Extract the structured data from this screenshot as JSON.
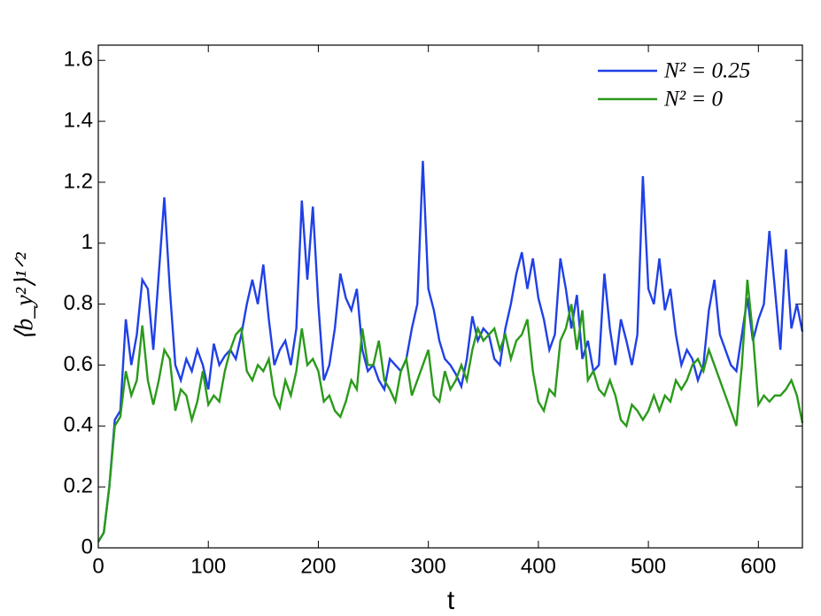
{
  "chart_data": {
    "type": "line",
    "xlabel": "t",
    "ylabel": "⟨b_y²⟩¹ᐟ²",
    "xlim": [
      0,
      640
    ],
    "ylim": [
      0,
      1.65
    ],
    "xticks": [
      0,
      100,
      200,
      300,
      400,
      500,
      600
    ],
    "yticks": [
      0,
      0.2,
      0.4,
      0.6,
      0.8,
      1,
      1.2,
      1.4,
      1.6
    ],
    "legend": "upper right",
    "x": [
      0,
      5,
      10,
      15,
      20,
      25,
      30,
      35,
      40,
      45,
      50,
      55,
      60,
      65,
      70,
      75,
      80,
      85,
      90,
      95,
      100,
      105,
      110,
      115,
      120,
      125,
      130,
      135,
      140,
      145,
      150,
      155,
      160,
      165,
      170,
      175,
      180,
      185,
      190,
      195,
      200,
      205,
      210,
      215,
      220,
      225,
      230,
      235,
      240,
      245,
      250,
      255,
      260,
      265,
      270,
      275,
      280,
      285,
      290,
      295,
      300,
      305,
      310,
      315,
      320,
      325,
      330,
      335,
      340,
      345,
      350,
      355,
      360,
      365,
      370,
      375,
      380,
      385,
      390,
      395,
      400,
      405,
      410,
      415,
      420,
      425,
      430,
      435,
      440,
      445,
      450,
      455,
      460,
      465,
      470,
      475,
      480,
      485,
      490,
      495,
      500,
      505,
      510,
      515,
      520,
      525,
      530,
      535,
      540,
      545,
      550,
      555,
      560,
      565,
      570,
      575,
      580,
      585,
      590,
      595,
      600,
      605,
      610,
      615,
      620,
      625,
      630,
      635,
      640
    ],
    "series": [
      {
        "name": "N² = 0.25",
        "color": "#2040e6",
        "values": [
          0.02,
          0.05,
          0.2,
          0.42,
          0.45,
          0.75,
          0.6,
          0.7,
          0.88,
          0.85,
          0.65,
          0.9,
          1.15,
          0.85,
          0.6,
          0.55,
          0.62,
          0.58,
          0.65,
          0.6,
          0.52,
          0.67,
          0.6,
          0.63,
          0.65,
          0.62,
          0.7,
          0.8,
          0.88,
          0.8,
          0.93,
          0.75,
          0.6,
          0.65,
          0.68,
          0.6,
          0.72,
          1.14,
          0.88,
          1.12,
          0.8,
          0.55,
          0.6,
          0.72,
          0.9,
          0.82,
          0.78,
          0.85,
          0.65,
          0.58,
          0.6,
          0.55,
          0.52,
          0.62,
          0.6,
          0.58,
          0.62,
          0.72,
          0.8,
          1.27,
          0.85,
          0.78,
          0.68,
          0.62,
          0.6,
          0.57,
          0.53,
          0.62,
          0.76,
          0.68,
          0.72,
          0.7,
          0.62,
          0.6,
          0.72,
          0.8,
          0.9,
          0.97,
          0.85,
          0.95,
          0.82,
          0.75,
          0.65,
          0.7,
          0.95,
          0.85,
          0.72,
          0.83,
          0.62,
          0.68,
          0.58,
          0.6,
          0.9,
          0.72,
          0.6,
          0.75,
          0.68,
          0.6,
          0.7,
          1.22,
          0.85,
          0.8,
          0.95,
          0.78,
          0.85,
          0.7,
          0.6,
          0.65,
          0.62,
          0.55,
          0.6,
          0.78,
          0.88,
          0.7,
          0.65,
          0.6,
          0.58,
          0.7,
          0.82,
          0.68,
          0.75,
          0.8,
          1.04,
          0.85,
          0.65,
          0.98,
          0.72,
          0.8,
          0.71
        ]
      },
      {
        "name": "N² = 0",
        "color": "#2a9a1a",
        "values": [
          0.02,
          0.05,
          0.2,
          0.4,
          0.43,
          0.58,
          0.5,
          0.55,
          0.73,
          0.55,
          0.47,
          0.55,
          0.65,
          0.62,
          0.45,
          0.52,
          0.5,
          0.42,
          0.48,
          0.58,
          0.47,
          0.5,
          0.48,
          0.58,
          0.65,
          0.7,
          0.72,
          0.58,
          0.55,
          0.6,
          0.58,
          0.62,
          0.5,
          0.46,
          0.55,
          0.5,
          0.58,
          0.72,
          0.6,
          0.62,
          0.58,
          0.48,
          0.5,
          0.45,
          0.43,
          0.48,
          0.55,
          0.52,
          0.72,
          0.6,
          0.6,
          0.68,
          0.55,
          0.52,
          0.48,
          0.58,
          0.62,
          0.5,
          0.55,
          0.6,
          0.65,
          0.5,
          0.48,
          0.58,
          0.52,
          0.55,
          0.6,
          0.55,
          0.65,
          0.72,
          0.68,
          0.7,
          0.72,
          0.65,
          0.7,
          0.62,
          0.68,
          0.7,
          0.75,
          0.58,
          0.48,
          0.45,
          0.52,
          0.5,
          0.68,
          0.72,
          0.8,
          0.65,
          0.78,
          0.55,
          0.58,
          0.52,
          0.5,
          0.55,
          0.5,
          0.42,
          0.4,
          0.47,
          0.45,
          0.42,
          0.45,
          0.5,
          0.45,
          0.5,
          0.48,
          0.55,
          0.52,
          0.55,
          0.6,
          0.62,
          0.58,
          0.65,
          0.6,
          0.55,
          0.5,
          0.45,
          0.4,
          0.6,
          0.88,
          0.7,
          0.47,
          0.5,
          0.48,
          0.5,
          0.5,
          0.52,
          0.55,
          0.5,
          0.41
        ]
      }
    ]
  }
}
